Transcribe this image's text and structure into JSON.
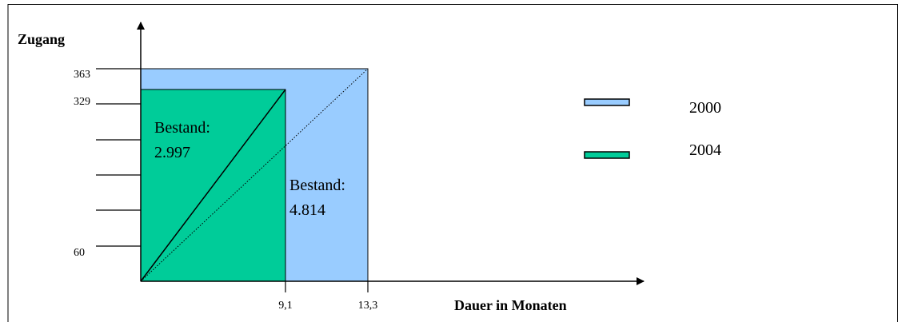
{
  "y_axis": {
    "label": "Zugang",
    "ticks": [
      "363",
      "329",
      "60"
    ]
  },
  "x_axis": {
    "label": "Dauer in Monaten",
    "ticks": [
      "9,1",
      "13,3"
    ]
  },
  "areas": [
    {
      "label": "Bestand:",
      "value": "2.997"
    },
    {
      "label": "Bestand:",
      "value": "4.814"
    }
  ],
  "legend": [
    "2000",
    "2004"
  ]
}
